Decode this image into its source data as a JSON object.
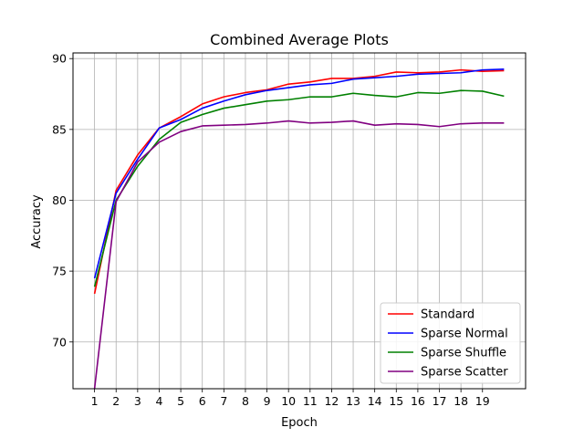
{
  "chart_data": {
    "type": "line",
    "title": "Combined Average Plots",
    "xlabel": "Epoch",
    "ylabel": "Accuracy",
    "xlim": [
      0,
      21
    ],
    "ylim": [
      66.7,
      90.4
    ],
    "xticks": [
      1,
      2,
      3,
      4,
      5,
      6,
      7,
      8,
      9,
      10,
      11,
      12,
      13,
      14,
      15,
      16,
      17,
      18,
      19
    ],
    "yticks": [
      70,
      75,
      80,
      85,
      90
    ],
    "grid": true,
    "legend_position": "lower-right",
    "x": [
      1,
      2,
      3,
      4,
      5,
      6,
      7,
      8,
      9,
      10,
      11,
      12,
      13,
      14,
      15,
      16,
      17,
      18,
      19,
      20
    ],
    "series": [
      {
        "name": "Standard",
        "color": "#ff0000",
        "values": [
          73.4,
          80.7,
          83.2,
          85.1,
          85.9,
          86.8,
          87.3,
          87.6,
          87.8,
          88.2,
          88.35,
          88.6,
          88.6,
          88.75,
          89.05,
          89.0,
          89.05,
          89.2,
          89.1,
          89.15
        ]
      },
      {
        "name": "Sparse Normal",
        "color": "#0000ff",
        "values": [
          74.5,
          80.5,
          82.9,
          85.1,
          85.7,
          86.5,
          87.0,
          87.45,
          87.75,
          87.95,
          88.15,
          88.25,
          88.55,
          88.65,
          88.75,
          88.9,
          88.95,
          89.0,
          89.2,
          89.25
        ]
      },
      {
        "name": "Sparse Shuffle",
        "color": "#008000",
        "values": [
          73.9,
          80.0,
          82.4,
          84.3,
          85.5,
          86.05,
          86.5,
          86.75,
          87.0,
          87.1,
          87.3,
          87.3,
          87.55,
          87.4,
          87.3,
          87.6,
          87.55,
          87.75,
          87.7,
          87.35
        ]
      },
      {
        "name": "Sparse Scatter",
        "color": "#800080",
        "values": [
          66.7,
          79.9,
          82.7,
          84.1,
          84.85,
          85.25,
          85.3,
          85.35,
          85.45,
          85.6,
          85.45,
          85.5,
          85.6,
          85.3,
          85.4,
          85.35,
          85.2,
          85.4,
          85.45,
          85.45
        ]
      }
    ]
  }
}
